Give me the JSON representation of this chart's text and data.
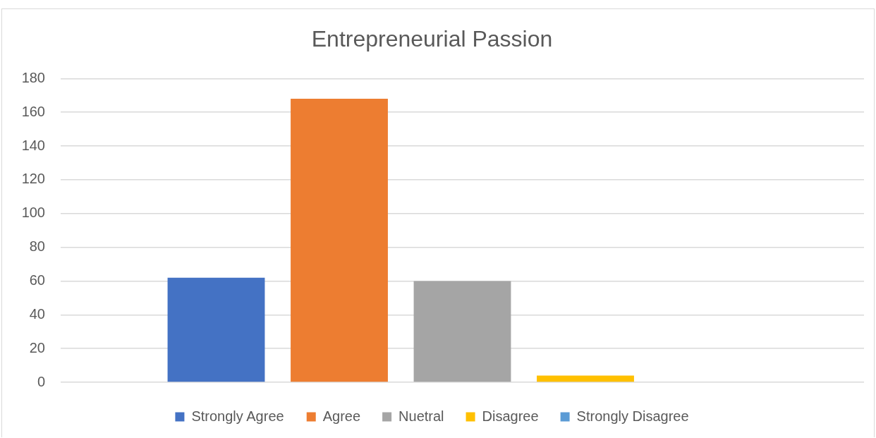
{
  "chart_data": {
    "type": "bar",
    "title": "Entrepreneurial Passion",
    "categories": [
      null
    ],
    "series": [
      {
        "name": "Strongly Agree",
        "color": "#4472c4",
        "values": [
          62
        ]
      },
      {
        "name": "Agree",
        "color": "#ed7d31",
        "values": [
          168
        ]
      },
      {
        "name": "Nuetral",
        "color": "#a5a5a5",
        "values": [
          60
        ]
      },
      {
        "name": "Disagree",
        "color": "#ffc000",
        "values": [
          4
        ]
      },
      {
        "name": "Strongly Disagree",
        "color": "#5b9bd5",
        "values": [
          0
        ]
      }
    ],
    "ylim": [
      0,
      180
    ],
    "yticks": [
      0,
      20,
      40,
      60,
      80,
      100,
      120,
      140,
      160,
      180
    ],
    "grid": "y",
    "legend": "bottom"
  }
}
